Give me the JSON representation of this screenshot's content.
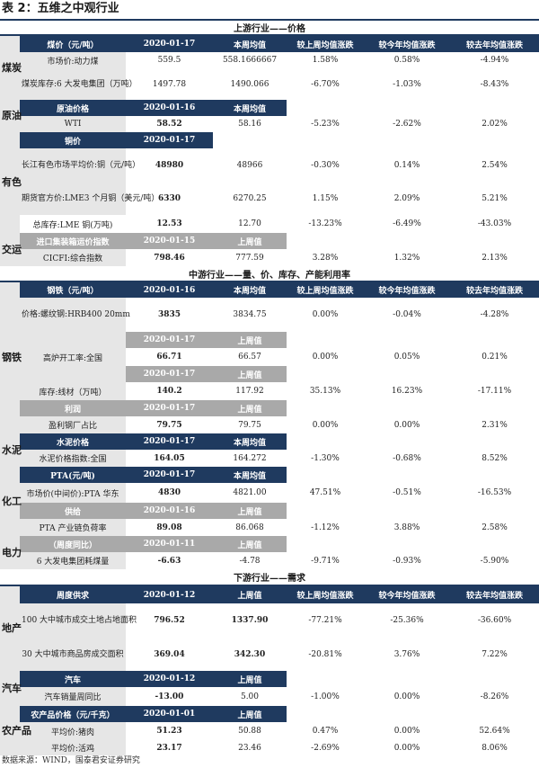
{
  "caption": "表 2：五维之中观行业",
  "sections": {
    "upstream": "上游行业——价格",
    "midstream": "中游行业——量、价、库存、产能利用率",
    "downstream": "下游行业——需求"
  },
  "industries": {
    "coal": "煤炭",
    "oil": "原油",
    "metal": "有色",
    "transport": "交运",
    "steel": "钢铁",
    "cement": "水泥",
    "chem": "化工",
    "power": "电力",
    "realestate": "地产",
    "auto": "汽车",
    "agri": "农产品"
  },
  "cols": {
    "this_week": "本周均值",
    "last_week": "上周值",
    "vs_last_week": "较上周均值涨跌",
    "vs_ytd": "较今年均值涨跌",
    "vs_last_year": "较去年均值涨跌"
  },
  "coal": {
    "header": {
      "label": "煤价（元/吨）",
      "date": "2020-01-17"
    },
    "rows": [
      {
        "name": "市场价:动力煤",
        "cur": "559.5",
        "avg": "558.1666667",
        "wk": "1.58%",
        "ytd": "0.58%",
        "ly": "-4.94%"
      },
      {
        "name": "煤炭库存:6 大发电集团（万吨）",
        "cur": "1497.78",
        "avg": "1490.066",
        "wk": "-6.70%",
        "ytd": "-1.03%",
        "ly": "-8.43%"
      }
    ]
  },
  "oil": {
    "header": {
      "label": "原油价格",
      "date": "2020-01-16"
    },
    "rows": [
      {
        "name": "WTI",
        "cur": "58.52",
        "avg": "58.16",
        "wk": "-5.23%",
        "ytd": "-2.62%",
        "ly": "2.02%"
      }
    ]
  },
  "metal": {
    "header": {
      "label": "铜价",
      "date": "2020-01-17"
    },
    "rows": [
      {
        "name": "长江有色市场平均价:铜（元/吨）",
        "cur": "48980",
        "avg": "48966",
        "wk": "-0.30%",
        "ytd": "0.14%",
        "ly": "2.54%"
      },
      {
        "name": "期货官方价:LME3 个月铜（美元/吨）",
        "cur": "6330",
        "avg": "6270.25",
        "wk": "1.15%",
        "ytd": "2.09%",
        "ly": "5.21%"
      },
      {
        "name": "总库存:LME 铜(万吨)",
        "cur": "12.53",
        "avg": "12.70",
        "wk": "-13.23%",
        "ytd": "-6.49%",
        "ly": "-43.03%"
      }
    ]
  },
  "transport": {
    "header": {
      "label": "进口集装箱运价指数",
      "date": "2020-01-15",
      "col": "上周值"
    },
    "rows": [
      {
        "name": "CICFI:综合指数",
        "cur": "798.46",
        "avg": "777.59",
        "wk": "3.28%",
        "ytd": "1.32%",
        "ly": "2.13%"
      }
    ]
  },
  "steel": {
    "header": {
      "label": "钢铁（元/吨）",
      "date": "2020-01-16"
    },
    "price": {
      "name": "价格:螺纹钢:HRB400 20mm",
      "cur": "3835",
      "avg": "3834.75",
      "wk": "0.00%",
      "ytd": "-0.04%",
      "ly": "-4.28%"
    },
    "sub1": {
      "date": "2020-01-17",
      "col": "上周值"
    },
    "blast": {
      "name": "高炉开工率:全国",
      "cur": "66.71",
      "avg": "66.57",
      "wk": "0.00%",
      "ytd": "0.05%",
      "ly": "0.21%"
    },
    "sub2": {
      "date": "2020-01-17",
      "col": "上周值"
    },
    "stock": {
      "name": "库存:线材（万吨）",
      "cur": "140.2",
      "avg": "117.92",
      "wk": "35.13%",
      "ytd": "16.23%",
      "ly": "-17.11%"
    },
    "sub3": {
      "label": "利润",
      "date": "2020-01-17",
      "col": "上周值"
    },
    "profit": {
      "name": "盈利钢厂占比",
      "cur": "79.75",
      "avg": "79.75",
      "wk": "0.00%",
      "ytd": "0.00%",
      "ly": "2.31%"
    }
  },
  "cement": {
    "header": {
      "label": "水泥价格",
      "date": "2020-01-17"
    },
    "rows": [
      {
        "name": "水泥价格指数:全国",
        "cur": "164.05",
        "avg": "164.272",
        "wk": "-1.30%",
        "ytd": "-0.68%",
        "ly": "8.52%"
      }
    ]
  },
  "chem": {
    "header": {
      "label": "PTA(元/吨)",
      "date": "2020-01-17"
    },
    "price": {
      "name": "市场价(中间价):PTA 华东",
      "cur": "4830",
      "avg": "4821.00",
      "wk": "47.51%",
      "ytd": "-0.51%",
      "ly": "-16.53%"
    },
    "sub": {
      "label": "供给",
      "date": "2020-01-16",
      "col": "上周值"
    },
    "load": {
      "name": "PTA 产业链负荷率",
      "cur": "89.08",
      "avg": "86.068",
      "wk": "-1.12%",
      "ytd": "3.88%",
      "ly": "2.58%"
    }
  },
  "power": {
    "header": {
      "label": "（周度同比）",
      "date": "2020-01-11",
      "col": "上周值"
    },
    "rows": [
      {
        "name": "6 大发电集团耗煤量",
        "cur": "-6.63",
        "avg": "-4.78",
        "wk": "-9.71%",
        "ytd": "-0.93%",
        "ly": "-5.90%"
      }
    ]
  },
  "realestate": {
    "header": {
      "label": "周度供求",
      "date": "2020-01-12",
      "col": "上周值"
    },
    "rows": [
      {
        "name": "100 大中城市成交土地占地面积",
        "cur": "796.52",
        "avg": "1337.90",
        "wk": "-77.21%",
        "ytd": "-25.36%",
        "ly": "-36.60%"
      },
      {
        "name": "30 大中城市商品房成交面积",
        "cur": "369.04",
        "avg": "342.30",
        "wk": "-20.81%",
        "ytd": "3.76%",
        "ly": "7.22%"
      }
    ]
  },
  "auto": {
    "header": {
      "label": "汽车",
      "date": "2020-01-12",
      "col": "上周值"
    },
    "rows": [
      {
        "name": "汽车销量周同比",
        "cur": "-13.00",
        "avg": "5.00",
        "wk": "-1.00%",
        "ytd": "0.00%",
        "ly": "-8.26%"
      }
    ]
  },
  "agri": {
    "header": {
      "label": "农产品价格（元/千克）",
      "date": "2020-01-01",
      "col": "上周值"
    },
    "rows": [
      {
        "name": "平均价:猪肉",
        "cur": "51.23",
        "avg": "50.88",
        "wk": "0.47%",
        "ytd": "0.00%",
        "ly": "52.64%"
      },
      {
        "name": "平均价:活鸡",
        "cur": "23.17",
        "avg": "23.46",
        "wk": "-2.69%",
        "ytd": "0.00%",
        "ly": "8.06%"
      }
    ]
  },
  "footer": "数据来源：WIND，国泰君安证券研究"
}
